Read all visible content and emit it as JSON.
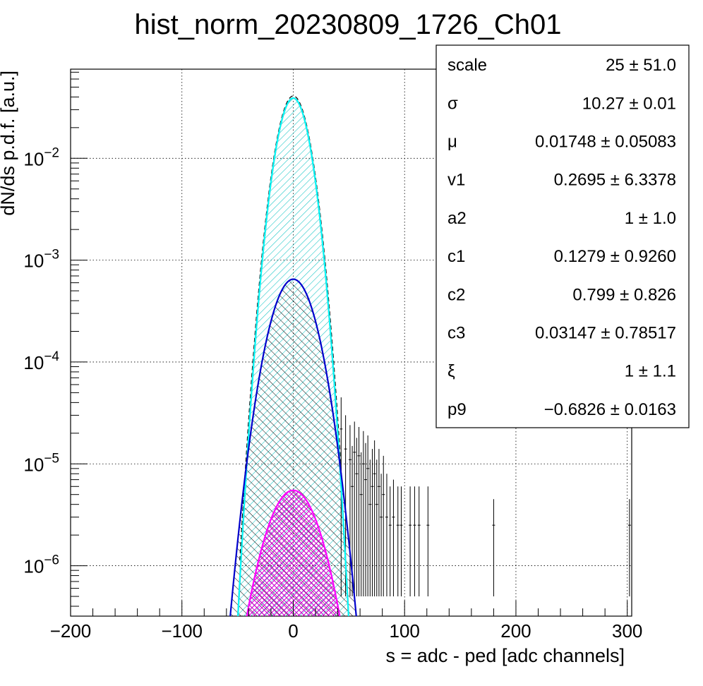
{
  "chart_data": {
    "type": "line",
    "title": "hist_norm_20230809_1726_Ch01",
    "xlabel": "s = adc - ped [adc channels]",
    "ylabel": "dN/ds p.d.f. [a.u.]",
    "xlim": [
      -200,
      304
    ],
    "ylim": [
      3.2e-07,
      0.075
    ],
    "y_scale": "log",
    "grid": true,
    "x_ticks": [
      {
        "value": -200,
        "label": "−200"
      },
      {
        "value": -100,
        "label": "−100"
      },
      {
        "value": 0,
        "label": "0"
      },
      {
        "value": 100,
        "label": "100"
      },
      {
        "value": 200,
        "label": "200"
      },
      {
        "value": 300,
        "label": "300"
      }
    ],
    "y_ticks": [
      {
        "value": 1e-06,
        "base": "10",
        "exp": "−6"
      },
      {
        "value": 1e-05,
        "base": "10",
        "exp": "−5"
      },
      {
        "value": 0.0001,
        "base": "10",
        "exp": "−4"
      },
      {
        "value": 0.001,
        "base": "10",
        "exp": "−3"
      },
      {
        "value": 0.01,
        "base": "10",
        "exp": "−2"
      }
    ],
    "series": [
      {
        "color": "#ff0000",
        "shape": "gaussian",
        "peak": 0.039,
        "mu": 0,
        "sigma": 10.27,
        "fill": "none"
      },
      {
        "color": "#00ffff",
        "shape": "gaussian",
        "peak": 0.039,
        "mu": 0,
        "sigma": 10.27,
        "fill": "hatch-cyan"
      },
      {
        "color": "#0000cc",
        "shape": "gaussian",
        "peak": 0.00065,
        "mu": 0,
        "sigma": 14.5,
        "fill": "hatch-black"
      },
      {
        "color": "#ff00ff",
        "shape": "gaussian",
        "peak": 5.5e-06,
        "mu": 0,
        "sigma": 17.5,
        "fill": "crosshatch-magenta"
      }
    ],
    "data_points": [
      {
        "x": 43,
        "y": 2.2e-05,
        "lo": 5e-07,
        "hi": 4.5e-05
      },
      {
        "x": 47,
        "y": 1.4e-05,
        "lo": 5e-07,
        "hi": 3e-05
      },
      {
        "x": 51,
        "y": 1.1e-05,
        "lo": 5e-07,
        "hi": 2.4e-05
      },
      {
        "x": 53,
        "y": 6e-06,
        "lo": 5e-07,
        "hi": 1.5e-05
      },
      {
        "x": 55,
        "y": 1.3e-05,
        "lo": 5e-07,
        "hi": 2.6e-05
      },
      {
        "x": 57,
        "y": 8e-06,
        "lo": 5e-07,
        "hi": 1.8e-05
      },
      {
        "x": 59,
        "y": 1.2e-05,
        "lo": 5e-07,
        "hi": 2.3e-05
      },
      {
        "x": 61,
        "y": 5e-06,
        "lo": 5e-07,
        "hi": 1.3e-05
      },
      {
        "x": 63,
        "y": 1e-05,
        "lo": 5e-07,
        "hi": 2.1e-05
      },
      {
        "x": 65,
        "y": 7e-06,
        "lo": 5e-07,
        "hi": 1.6e-05
      },
      {
        "x": 67,
        "y": 9e-06,
        "lo": 5e-07,
        "hi": 1.9e-05
      },
      {
        "x": 69,
        "y": 4e-06,
        "lo": 5e-07,
        "hi": 1.1e-05
      },
      {
        "x": 71,
        "y": 6e-06,
        "lo": 5e-07,
        "hi": 1.4e-05
      },
      {
        "x": 73,
        "y": 8e-06,
        "lo": 5e-07,
        "hi": 1.7e-05
      },
      {
        "x": 75,
        "y": 4e-06,
        "lo": 5e-07,
        "hi": 1.1e-05
      },
      {
        "x": 77,
        "y": 6e-06,
        "lo": 5e-07,
        "hi": 1.4e-05
      },
      {
        "x": 79,
        "y": 3e-06,
        "lo": 5e-07,
        "hi": 8e-06
      },
      {
        "x": 81,
        "y": 5e-06,
        "lo": 5e-07,
        "hi": 1.2e-05
      },
      {
        "x": 84,
        "y": 3e-06,
        "lo": 5e-07,
        "hi": 8e-06
      },
      {
        "x": 87,
        "y": 2.5e-06,
        "lo": 5e-07,
        "hi": 6e-06
      },
      {
        "x": 90,
        "y": 3e-06,
        "lo": 5e-07,
        "hi": 7e-06
      },
      {
        "x": 94,
        "y": 2.5e-06,
        "lo": 5e-07,
        "hi": 6e-06
      },
      {
        "x": 97,
        "y": 2.5e-06,
        "lo": 5e-07,
        "hi": 6e-06
      },
      {
        "x": 105,
        "y": 2.5e-06,
        "lo": 5e-07,
        "hi": 6e-06
      },
      {
        "x": 109,
        "y": 2.5e-06,
        "lo": 5e-07,
        "hi": 6e-06
      },
      {
        "x": 113,
        "y": 2.5e-06,
        "lo": 5e-07,
        "hi": 6e-06
      },
      {
        "x": 121,
        "y": 2.5e-06,
        "lo": 5e-07,
        "hi": 6e-06
      },
      {
        "x": 180,
        "y": 2.5e-06,
        "lo": 5e-07,
        "hi": 4.5e-06
      },
      {
        "x": 302,
        "y": 2.5e-06,
        "lo": 5e-07,
        "hi": 4.5e-06
      }
    ]
  },
  "stats_box": {
    "rows": [
      {
        "label": "scale",
        "value": "25 ± 51.0"
      },
      {
        "label": "σ",
        "value": "10.27 ± 0.01"
      },
      {
        "label": "μ",
        "value": "0.01748 ± 0.05083"
      },
      {
        "label": "v1",
        "value": "0.2695 ± 6.3378"
      },
      {
        "label": "a2",
        "value": "1 ± 1.0"
      },
      {
        "label": "c1",
        "value": "0.1279 ± 0.9260"
      },
      {
        "label": "c2",
        "value": "0.799 ± 0.826"
      },
      {
        "label": "c3",
        "value": "0.03147 ± 0.78517"
      },
      {
        "label": "ξ",
        "value": "1 ± 1.1"
      },
      {
        "label": "p9",
        "value": "−0.6826 ± 0.0163"
      }
    ]
  }
}
